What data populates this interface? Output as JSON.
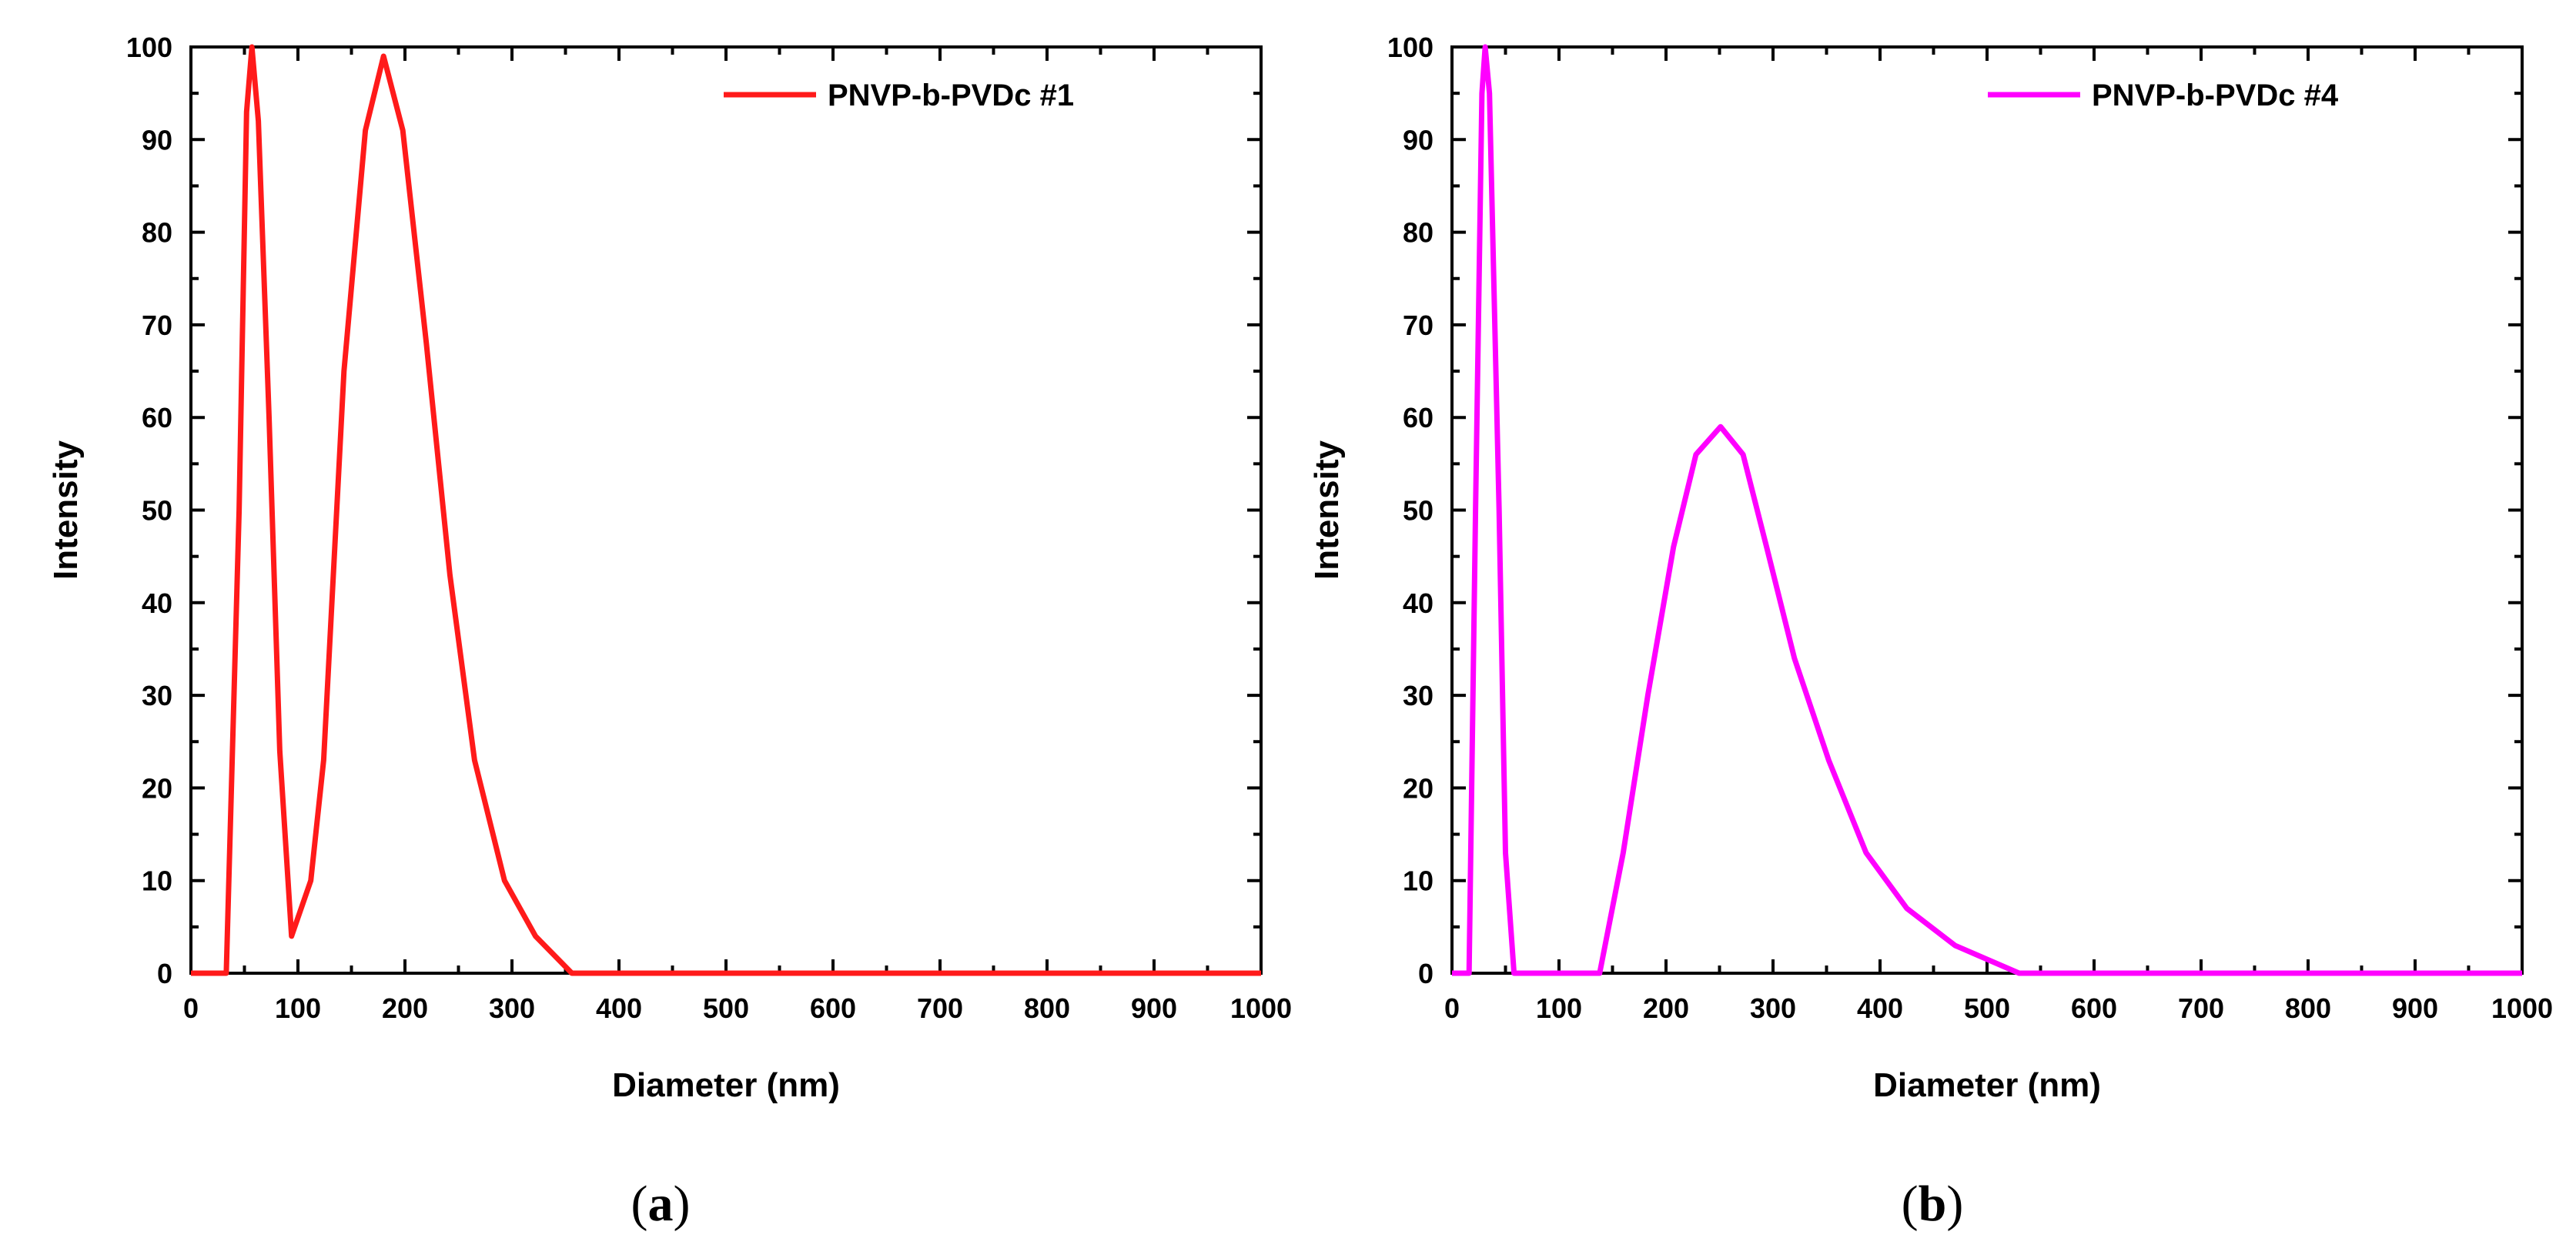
{
  "chart_data": [
    {
      "type": "line",
      "panel_label": "a",
      "xlabel": "Diameter (nm)",
      "ylabel": "Intensity",
      "xlim": [
        0,
        1000
      ],
      "ylim": [
        0,
        100
      ],
      "xticks": [
        0,
        100,
        200,
        300,
        400,
        500,
        600,
        700,
        800,
        900,
        1000
      ],
      "yticks": [
        0,
        10,
        20,
        30,
        40,
        50,
        60,
        70,
        80,
        90,
        100
      ],
      "grid": false,
      "legend": "top-right",
      "series": [
        {
          "name": "PNVP-b-PVDc #1",
          "color": "#ff1a1a",
          "x": [
            0,
            30,
            33,
            45,
            52,
            57,
            63,
            73,
            83,
            94,
            112,
            124,
            143,
            163,
            180,
            198,
            220,
            242,
            265,
            293,
            322,
            356,
            400,
            500,
            600,
            700,
            800,
            900,
            1000
          ],
          "y": [
            0,
            0,
            0,
            50,
            93,
            100,
            92,
            60,
            24,
            4,
            10,
            23,
            65,
            91,
            99,
            91,
            68,
            43,
            23,
            10,
            4,
            0,
            0,
            0,
            0,
            0,
            0,
            0,
            0
          ]
        }
      ]
    },
    {
      "type": "line",
      "panel_label": "b",
      "xlabel": "Diameter (nm)",
      "ylabel": "Intensity",
      "xlim": [
        0,
        1000
      ],
      "ylim": [
        0,
        100
      ],
      "xticks": [
        0,
        100,
        200,
        300,
        400,
        500,
        600,
        700,
        800,
        900,
        1000
      ],
      "yticks": [
        0,
        10,
        20,
        30,
        40,
        50,
        60,
        70,
        80,
        90,
        100
      ],
      "grid": false,
      "legend": "top-right",
      "series": [
        {
          "name": "PNVP-b-PVDc #4",
          "color": "#ff00ff",
          "x": [
            0,
            16,
            22,
            28,
            31,
            35,
            44,
            50,
            58,
            65,
            100,
            138,
            160,
            183,
            207,
            228,
            251,
            272,
            294,
            320,
            352,
            387,
            425,
            470,
            530,
            600,
            700,
            800,
            900,
            1000
          ],
          "y": [
            0,
            0,
            50,
            95,
            100,
            95,
            50,
            13,
            0,
            0,
            0,
            0,
            13,
            30,
            46,
            56,
            59,
            56,
            46,
            34,
            23,
            13,
            7,
            3,
            0,
            0,
            0,
            0,
            0,
            0
          ]
        }
      ]
    }
  ]
}
